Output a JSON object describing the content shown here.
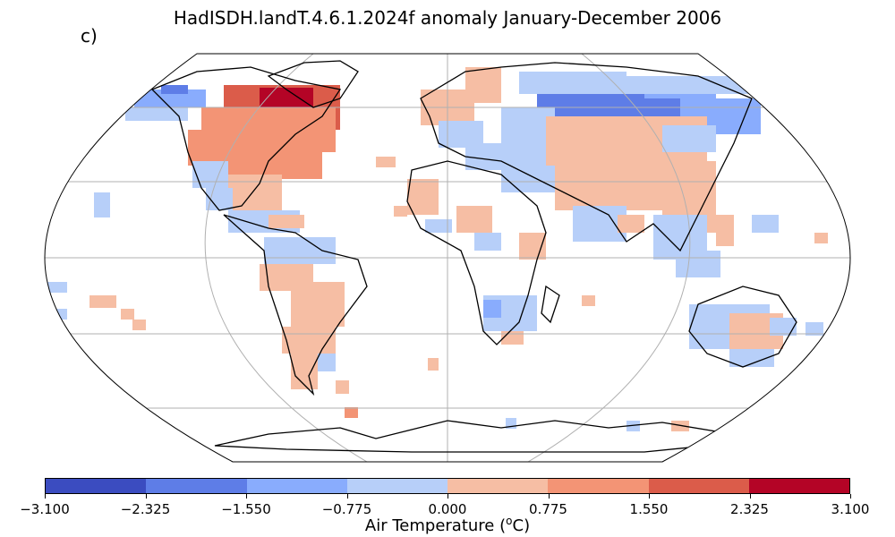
{
  "title": "HadISDH.landT.4.6.1.2024f anomaly January-December 2006",
  "panel_label": "c)",
  "colorbar": {
    "label": "Air Temperature",
    "unit_base": "o",
    "unit_suffix": "C",
    "ticks": [
      "−3.100",
      "−2.325",
      "−1.550",
      "−0.775",
      "0.000",
      "0.775",
      "1.550",
      "2.325",
      "3.100"
    ],
    "colors": [
      "#3b4cc0",
      "#5e7de7",
      "#89acfd",
      "#b7cff9",
      "#f6bea4",
      "#f39475",
      "#db5c4a",
      "#b40426"
    ]
  },
  "map": {
    "projection": "robinson",
    "land_color": "#ffffff",
    "coast_color": "#000000",
    "grid_color": "#b0b0b0"
  }
}
